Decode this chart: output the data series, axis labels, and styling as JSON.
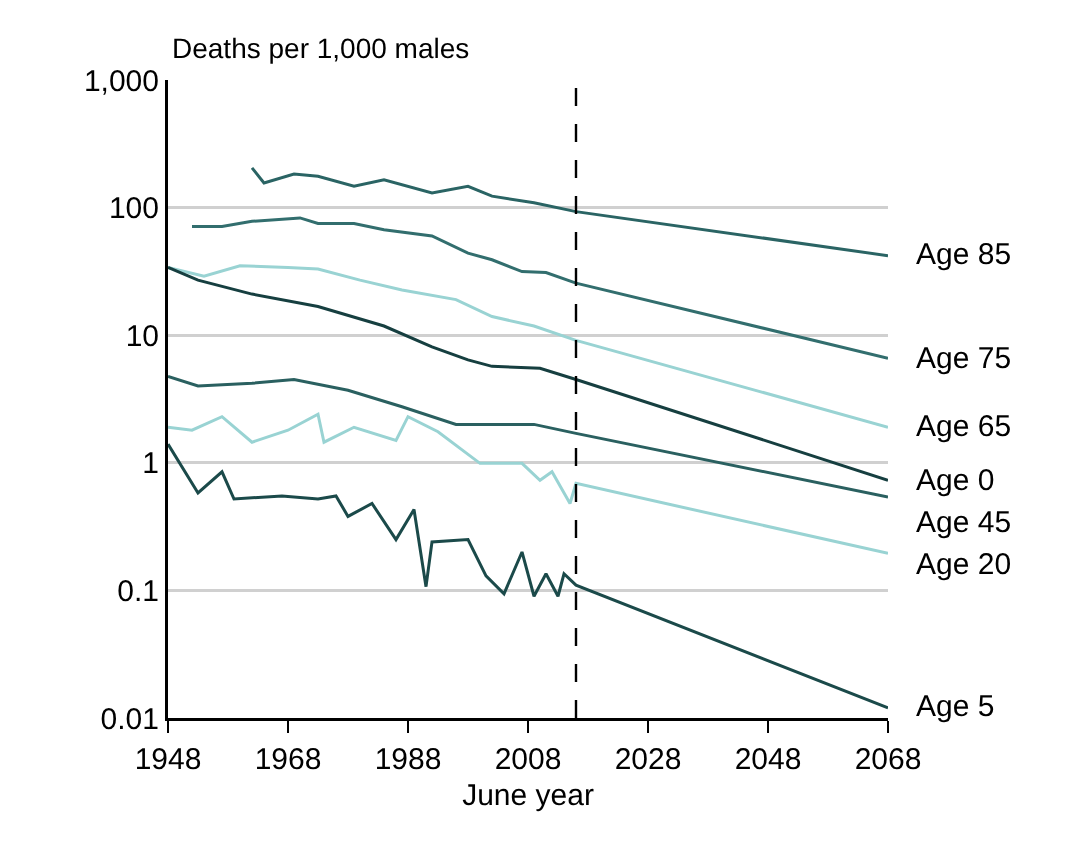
{
  "chart_data": {
    "type": "line",
    "ylabel": "Deaths per 1,000 males",
    "xlabel": "June year",
    "log": "y",
    "grid": "y",
    "legend": false,
    "line_style": "solid",
    "marker": "none",
    "xlim": [
      1948,
      2068
    ],
    "xticks": [
      1948,
      1968,
      1988,
      2008,
      2028,
      2048,
      2068
    ],
    "ylim": [
      0.01,
      1000
    ],
    "yticks": [
      {
        "value": 0.01,
        "label": "0.01"
      },
      {
        "value": 0.1,
        "label": "0.1"
      },
      {
        "value": 1,
        "label": "1"
      },
      {
        "value": 10,
        "label": "10"
      },
      {
        "value": 100,
        "label": "100"
      },
      {
        "value": 1000,
        "label": "1,000"
      }
    ],
    "ref_lines": [
      {
        "axis": "x",
        "value": 2016,
        "line_style": "dashed",
        "color": "#000000"
      }
    ],
    "series": [
      {
        "name": "Age 85",
        "color": "#2a6464",
        "x": [
          1962,
          1964,
          1969,
          1973,
          1979,
          1984,
          1992,
          1998,
          2002,
          2009,
          2016,
          2068
        ],
        "values": [
          205,
          156,
          183,
          176,
          147,
          165,
          130,
          147,
          123,
          109,
          93,
          42
        ]
      },
      {
        "name": "Age 75",
        "color": "#326e6e",
        "x": [
          1952,
          1957,
          1962,
          1970,
          1973,
          1979,
          1984,
          1992,
          1998,
          2002,
          2007,
          2011,
          2016,
          2068
        ],
        "values": [
          71,
          71,
          78,
          83,
          75,
          75,
          67,
          60,
          44,
          39,
          31.5,
          31,
          25.6,
          6.6
        ]
      },
      {
        "name": "Age 65",
        "color": "#99d3d3",
        "x": [
          1948,
          1954,
          1960,
          1968,
          1973,
          1980,
          1987,
          1996,
          2002,
          2009,
          2016,
          2068
        ],
        "values": [
          34,
          29,
          35,
          34,
          33,
          27,
          22.6,
          19,
          14,
          11.8,
          9.1,
          1.9
        ]
      },
      {
        "name": "Age 0",
        "color": "#163f40",
        "x": [
          1948,
          1953,
          1962,
          1973,
          1984,
          1992,
          1998,
          2002,
          2010,
          2016,
          2068
        ],
        "values": [
          34,
          27,
          21,
          16.8,
          11.8,
          8.1,
          6.4,
          5.7,
          5.5,
          4.5,
          0.73
        ]
      },
      {
        "name": "Age 45",
        "color": "#2a6060",
        "x": [
          1948,
          1953,
          1962,
          1969,
          1978,
          1987,
          1996,
          2002,
          2009,
          2016,
          2068
        ],
        "values": [
          4.75,
          4.0,
          4.2,
          4.5,
          3.7,
          2.75,
          2.0,
          2.0,
          2.0,
          1.7,
          0.54
        ]
      },
      {
        "name": "Age 20",
        "color": "#99d3d3",
        "x": [
          1948,
          1952,
          1957,
          1962,
          1968,
          1973,
          1974,
          1979,
          1986,
          1988,
          1993,
          2000,
          2007,
          2010,
          2012,
          2015,
          2016,
          2068
        ],
        "values": [
          1.9,
          1.8,
          2.3,
          1.45,
          1.8,
          2.4,
          1.45,
          1.9,
          1.5,
          2.3,
          1.75,
          0.99,
          0.99,
          0.73,
          0.85,
          0.48,
          0.69,
          0.195
        ]
      },
      {
        "name": "Age 5",
        "color": "#1b4a4a",
        "x": [
          1948,
          1953,
          1957,
          1959,
          1967,
          1973,
          1976,
          1978,
          1982,
          1986,
          1989,
          1991,
          1992,
          1998,
          2001,
          2004,
          2007,
          2009,
          2011,
          2013,
          2014,
          2016,
          2068
        ],
        "values": [
          1.4,
          0.58,
          0.85,
          0.52,
          0.55,
          0.52,
          0.55,
          0.38,
          0.48,
          0.25,
          0.43,
          0.107,
          0.24,
          0.25,
          0.13,
          0.094,
          0.2,
          0.09,
          0.135,
          0.09,
          0.135,
          0.11,
          0.012
        ]
      }
    ]
  }
}
